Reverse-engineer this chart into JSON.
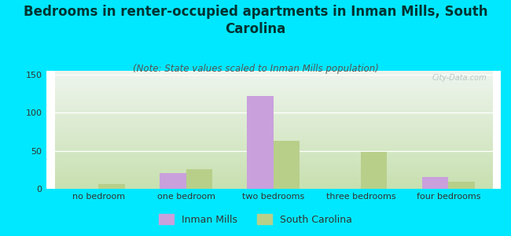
{
  "title": "Bedrooms in renter-occupied apartments in Inman Mills, South\nCarolina",
  "subtitle": "(Note: State values scaled to Inman Mills population)",
  "categories": [
    "no bedroom",
    "one bedroom",
    "two bedrooms",
    "three bedrooms",
    "four bedrooms"
  ],
  "inman_mills": [
    0,
    21,
    122,
    0,
    15
  ],
  "south_carolina": [
    6,
    26,
    63,
    49,
    9
  ],
  "inman_color": "#c9a0dc",
  "sc_color": "#b8cf8a",
  "background_outer": "#00e8ff",
  "background_inner_topleft": "#eef5ee",
  "background_inner_bottomright": "#c8e0b0",
  "ylim": [
    0,
    155
  ],
  "yticks": [
    0,
    50,
    100,
    150
  ],
  "bar_width": 0.3,
  "title_fontsize": 12,
  "subtitle_fontsize": 8.5,
  "tick_fontsize": 8,
  "legend_fontsize": 9,
  "watermark": "City-Data.com"
}
